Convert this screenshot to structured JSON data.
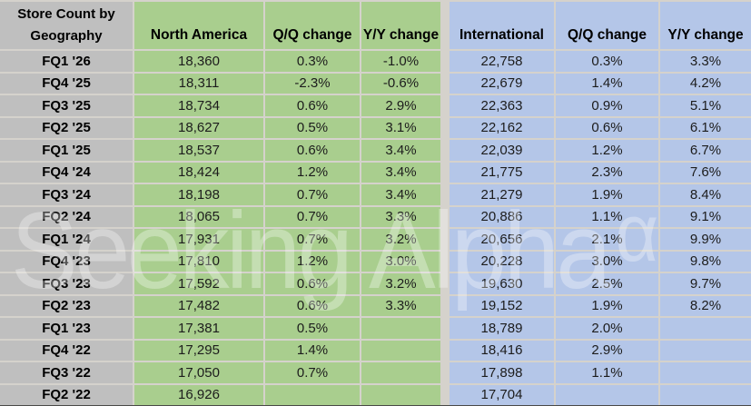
{
  "table": {
    "title_line1": "Store Count by",
    "title_line2": "Geography",
    "column_headers": [
      "North America",
      "Q/Q change",
      "Y/Y change",
      "International",
      "Q/Q change",
      "Y/Y change"
    ],
    "rows": [
      {
        "label": "FQ1 '26",
        "na": "18,360",
        "na_qq": "0.3%",
        "na_yy": "-1.0%",
        "intl": "22,758",
        "intl_qq": "0.3%",
        "intl_yy": "3.3%"
      },
      {
        "label": "FQ4 '25",
        "na": "18,311",
        "na_qq": "-2.3%",
        "na_yy": "-0.6%",
        "intl": "22,679",
        "intl_qq": "1.4%",
        "intl_yy": "4.2%"
      },
      {
        "label": "FQ3 '25",
        "na": "18,734",
        "na_qq": "0.6%",
        "na_yy": "2.9%",
        "intl": "22,363",
        "intl_qq": "0.9%",
        "intl_yy": "5.1%"
      },
      {
        "label": "FQ2 '25",
        "na": "18,627",
        "na_qq": "0.5%",
        "na_yy": "3.1%",
        "intl": "22,162",
        "intl_qq": "0.6%",
        "intl_yy": "6.1%"
      },
      {
        "label": "FQ1 '25",
        "na": "18,537",
        "na_qq": "0.6%",
        "na_yy": "3.4%",
        "intl": "22,039",
        "intl_qq": "1.2%",
        "intl_yy": "6.7%"
      },
      {
        "label": "FQ4 '24",
        "na": "18,424",
        "na_qq": "1.2%",
        "na_yy": "3.4%",
        "intl": "21,775",
        "intl_qq": "2.3%",
        "intl_yy": "7.6%"
      },
      {
        "label": "FQ3 '24",
        "na": "18,198",
        "na_qq": "0.7%",
        "na_yy": "3.4%",
        "intl": "21,279",
        "intl_qq": "1.9%",
        "intl_yy": "8.4%"
      },
      {
        "label": "FQ2 '24",
        "na": "18,065",
        "na_qq": "0.7%",
        "na_yy": "3.3%",
        "intl": "20,886",
        "intl_qq": "1.1%",
        "intl_yy": "9.1%"
      },
      {
        "label": "FQ1 '24",
        "na": "17,931",
        "na_qq": "0.7%",
        "na_yy": "3.2%",
        "intl": "20,656",
        "intl_qq": "2.1%",
        "intl_yy": "9.9%"
      },
      {
        "label": "FQ4 '23",
        "na": "17,810",
        "na_qq": "1.2%",
        "na_yy": "3.0%",
        "intl": "20,228",
        "intl_qq": "3.0%",
        "intl_yy": "9.8%"
      },
      {
        "label": "FQ3 '23",
        "na": "17,592",
        "na_qq": "0.6%",
        "na_yy": "3.2%",
        "intl": "19,630",
        "intl_qq": "2.5%",
        "intl_yy": "9.7%"
      },
      {
        "label": "FQ2 '23",
        "na": "17,482",
        "na_qq": "0.6%",
        "na_yy": "3.3%",
        "intl": "19,152",
        "intl_qq": "1.9%",
        "intl_yy": "8.2%"
      },
      {
        "label": "FQ1 '23",
        "na": "17,381",
        "na_qq": "0.5%",
        "na_yy": "",
        "intl": "18,789",
        "intl_qq": "2.0%",
        "intl_yy": ""
      },
      {
        "label": "FQ4 '22",
        "na": "17,295",
        "na_qq": "1.4%",
        "na_yy": "",
        "intl": "18,416",
        "intl_qq": "2.9%",
        "intl_yy": ""
      },
      {
        "label": "FQ3 '22",
        "na": "17,050",
        "na_qq": "0.7%",
        "na_yy": "",
        "intl": "17,898",
        "intl_qq": "1.1%",
        "intl_yy": ""
      },
      {
        "label": "FQ2 '22",
        "na": "16,926",
        "na_qq": "",
        "na_yy": "",
        "intl": "17,704",
        "intl_qq": "",
        "intl_yy": ""
      }
    ]
  },
  "watermark": {
    "text": "Seeking Alpha",
    "symbol": "α"
  },
  "colors": {
    "na_green": "#A9CE8E",
    "intl_blue": "#B4C6E8",
    "label_gray": "#BFBFBF",
    "gridline": "#D5D2CC"
  },
  "chart_data": {
    "type": "table",
    "title": "Store Count by Geography",
    "categories": [
      "FQ1 '26",
      "FQ4 '25",
      "FQ3 '25",
      "FQ2 '25",
      "FQ1 '25",
      "FQ4 '24",
      "FQ3 '24",
      "FQ2 '24",
      "FQ1 '24",
      "FQ4 '23",
      "FQ3 '23",
      "FQ2 '23",
      "FQ1 '23",
      "FQ4 '22",
      "FQ3 '22",
      "FQ2 '22"
    ],
    "series": [
      {
        "name": "North America store count",
        "values": [
          18360,
          18311,
          18734,
          18627,
          18537,
          18424,
          18198,
          18065,
          17931,
          17810,
          17592,
          17482,
          17381,
          17295,
          17050,
          16926
        ]
      },
      {
        "name": "North America Q/Q change %",
        "values": [
          0.3,
          -2.3,
          0.6,
          0.5,
          0.6,
          1.2,
          0.7,
          0.7,
          0.7,
          1.2,
          0.6,
          0.6,
          0.5,
          1.4,
          0.7,
          null
        ]
      },
      {
        "name": "North America Y/Y change %",
        "values": [
          -1.0,
          -0.6,
          2.9,
          3.1,
          3.4,
          3.4,
          3.4,
          3.3,
          3.2,
          3.0,
          3.2,
          3.3,
          null,
          null,
          null,
          null
        ]
      },
      {
        "name": "International store count",
        "values": [
          22758,
          22679,
          22363,
          22162,
          22039,
          21775,
          21279,
          20886,
          20656,
          20228,
          19630,
          19152,
          18789,
          18416,
          17898,
          17704
        ]
      },
      {
        "name": "International Q/Q change %",
        "values": [
          0.3,
          1.4,
          0.9,
          0.6,
          1.2,
          2.3,
          1.9,
          1.1,
          2.1,
          3.0,
          2.5,
          1.9,
          2.0,
          2.9,
          1.1,
          null
        ]
      },
      {
        "name": "International Y/Y change %",
        "values": [
          3.3,
          4.2,
          5.1,
          6.1,
          6.7,
          7.6,
          8.4,
          9.1,
          9.9,
          9.8,
          9.7,
          8.2,
          null,
          null,
          null,
          null
        ]
      }
    ]
  }
}
